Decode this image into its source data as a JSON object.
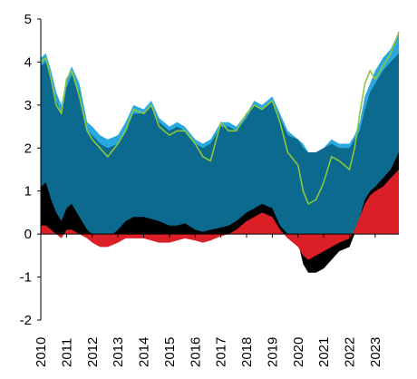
{
  "chart_data": {
    "type": "area",
    "title": "",
    "xlabel": "",
    "ylabel": "",
    "xlim": [
      2010.0,
      2023.92
    ],
    "ylim": [
      -2,
      5
    ],
    "grid": false,
    "legend": "none",
    "y_ticks": [
      "5",
      "4",
      "3",
      "2",
      "1",
      "0",
      "-1",
      "-2"
    ],
    "x_ticks": [
      "2010",
      "2011",
      "2012",
      "2013",
      "2014",
      "2015",
      "2016",
      "2017",
      "2018",
      "2019",
      "2020",
      "2021",
      "2022",
      "2023"
    ],
    "colors": {
      "total_area": "#29A9DF",
      "main_area": "#0B6A8E",
      "black_component": "#000000",
      "red_component": "#DA1F26",
      "line": "#8CC63F"
    },
    "series": [
      {
        "role": "total_area",
        "x": [
          2010.0,
          2010.2,
          2010.4,
          2010.6,
          2010.8,
          2011.0,
          2011.2,
          2011.5,
          2011.8,
          2012.0,
          2012.3,
          2012.6,
          2013.0,
          2013.3,
          2013.6,
          2014.0,
          2014.3,
          2014.6,
          2015.0,
          2015.3,
          2015.6,
          2016.0,
          2016.3,
          2016.6,
          2017.0,
          2017.3,
          2017.6,
          2018.0,
          2018.3,
          2018.6,
          2019.0,
          2019.3,
          2019.6,
          2020.0,
          2020.2,
          2020.4,
          2020.7,
          2021.0,
          2021.3,
          2021.6,
          2022.0,
          2022.2,
          2022.4,
          2022.6,
          2022.8,
          2023.0,
          2023.3,
          2023.6,
          2023.92
        ],
        "values": [
          4.1,
          4.2,
          3.8,
          3.3,
          3.0,
          3.6,
          3.9,
          3.5,
          2.6,
          2.5,
          2.3,
          2.2,
          2.3,
          2.6,
          3.0,
          2.9,
          3.1,
          2.7,
          2.5,
          2.6,
          2.5,
          2.2,
          2.1,
          2.2,
          2.6,
          2.6,
          2.5,
          2.8,
          3.1,
          3.0,
          3.2,
          2.8,
          2.4,
          2.2,
          2.1,
          1.9,
          1.9,
          2.0,
          2.2,
          2.1,
          2.1,
          2.3,
          2.6,
          3.2,
          3.5,
          3.8,
          4.1,
          4.3,
          4.7
        ]
      },
      {
        "role": "main_area",
        "x": [
          2010.0,
          2010.2,
          2010.4,
          2010.6,
          2010.8,
          2011.0,
          2011.2,
          2011.5,
          2011.8,
          2012.0,
          2012.3,
          2012.6,
          2013.0,
          2013.3,
          2013.6,
          2014.0,
          2014.3,
          2014.6,
          2015.0,
          2015.3,
          2015.6,
          2016.0,
          2016.3,
          2016.6,
          2017.0,
          2017.3,
          2017.6,
          2018.0,
          2018.3,
          2018.6,
          2019.0,
          2019.3,
          2019.6,
          2020.0,
          2020.2,
          2020.4,
          2020.7,
          2021.0,
          2021.3,
          2021.6,
          2022.0,
          2022.2,
          2022.4,
          2022.6,
          2022.8,
          2023.0,
          2023.3,
          2023.6,
          2023.92
        ],
        "values": [
          3.9,
          4.0,
          3.6,
          3.1,
          2.8,
          3.4,
          3.7,
          3.3,
          2.4,
          2.3,
          2.1,
          2.0,
          2.1,
          2.4,
          2.8,
          2.8,
          3.0,
          2.6,
          2.4,
          2.5,
          2.4,
          2.1,
          2.0,
          2.1,
          2.5,
          2.5,
          2.4,
          2.7,
          3.0,
          2.9,
          3.1,
          2.7,
          2.3,
          2.2,
          2.0,
          1.9,
          1.9,
          2.0,
          2.1,
          2.0,
          2.0,
          2.2,
          2.4,
          2.9,
          3.3,
          3.5,
          3.8,
          4.0,
          4.2
        ]
      },
      {
        "role": "black_component",
        "x": [
          2010.0,
          2010.2,
          2010.4,
          2010.6,
          2010.8,
          2011.0,
          2011.2,
          2011.5,
          2011.8,
          2012.0,
          2012.3,
          2012.6,
          2013.0,
          2013.3,
          2013.6,
          2014.0,
          2014.3,
          2014.6,
          2015.0,
          2015.3,
          2015.6,
          2016.0,
          2016.3,
          2016.6,
          2017.0,
          2017.3,
          2017.6,
          2018.0,
          2018.3,
          2018.6,
          2019.0,
          2019.3,
          2019.6,
          2020.0,
          2020.2,
          2020.4,
          2020.7,
          2021.0,
          2021.3,
          2021.6,
          2022.0,
          2022.2,
          2022.4,
          2022.6,
          2022.8,
          2023.0,
          2023.3,
          2023.6,
          2023.92
        ],
        "values": [
          1.1,
          1.2,
          0.8,
          0.5,
          0.3,
          0.6,
          0.7,
          0.4,
          0.1,
          0.0,
          -0.2,
          -0.1,
          0.1,
          0.3,
          0.4,
          0.4,
          0.35,
          0.3,
          0.2,
          0.2,
          0.25,
          0.1,
          0.05,
          0.1,
          0.15,
          0.2,
          0.3,
          0.5,
          0.6,
          0.7,
          0.6,
          0.2,
          0.0,
          -0.2,
          -0.7,
          -0.9,
          -0.9,
          -0.8,
          -0.6,
          -0.4,
          -0.3,
          0.0,
          0.4,
          0.8,
          1.0,
          1.1,
          1.3,
          1.5,
          1.9
        ]
      },
      {
        "role": "red_component",
        "x": [
          2010.0,
          2010.2,
          2010.4,
          2010.6,
          2010.8,
          2011.0,
          2011.2,
          2011.5,
          2011.8,
          2012.0,
          2012.3,
          2012.6,
          2013.0,
          2013.3,
          2013.6,
          2014.0,
          2014.3,
          2014.6,
          2015.0,
          2015.3,
          2015.6,
          2016.0,
          2016.3,
          2016.6,
          2017.0,
          2017.3,
          2017.6,
          2018.0,
          2018.3,
          2018.6,
          2019.0,
          2019.3,
          2019.6,
          2020.0,
          2020.2,
          2020.4,
          2020.7,
          2021.0,
          2021.3,
          2021.6,
          2022.0,
          2022.2,
          2022.4,
          2022.6,
          2022.8,
          2023.0,
          2023.3,
          2023.6,
          2023.92
        ],
        "values": [
          0.2,
          0.2,
          0.1,
          0.0,
          -0.1,
          0.1,
          0.1,
          0.0,
          -0.1,
          -0.2,
          -0.3,
          -0.3,
          -0.2,
          -0.1,
          -0.1,
          -0.1,
          -0.15,
          -0.2,
          -0.2,
          -0.15,
          -0.1,
          -0.15,
          -0.2,
          -0.15,
          -0.05,
          0.0,
          0.1,
          0.3,
          0.4,
          0.5,
          0.4,
          0.1,
          -0.1,
          -0.3,
          -0.5,
          -0.6,
          -0.5,
          -0.4,
          -0.3,
          -0.2,
          -0.1,
          0.1,
          0.4,
          0.7,
          0.9,
          1.0,
          1.1,
          1.3,
          1.5
        ]
      },
      {
        "role": "line",
        "x": [
          2010.0,
          2010.2,
          2010.4,
          2010.6,
          2010.8,
          2011.0,
          2011.2,
          2011.5,
          2011.8,
          2012.0,
          2012.3,
          2012.6,
          2013.0,
          2013.3,
          2013.6,
          2014.0,
          2014.3,
          2014.6,
          2015.0,
          2015.3,
          2015.6,
          2016.0,
          2016.3,
          2016.6,
          2017.0,
          2017.3,
          2017.6,
          2018.0,
          2018.3,
          2018.6,
          2019.0,
          2019.3,
          2019.6,
          2020.0,
          2020.2,
          2020.4,
          2020.7,
          2021.0,
          2021.3,
          2021.6,
          2022.0,
          2022.2,
          2022.4,
          2022.6,
          2022.8,
          2023.0,
          2023.3,
          2023.6,
          2023.92
        ],
        "values": [
          4.0,
          4.1,
          3.6,
          3.0,
          2.8,
          3.6,
          3.8,
          3.2,
          2.4,
          2.2,
          2.0,
          1.8,
          2.1,
          2.4,
          2.9,
          2.8,
          3.0,
          2.5,
          2.3,
          2.4,
          2.4,
          2.1,
          1.8,
          1.7,
          2.6,
          2.4,
          2.4,
          2.8,
          3.0,
          2.9,
          3.1,
          2.6,
          1.9,
          1.6,
          1.0,
          0.7,
          0.8,
          1.2,
          1.8,
          1.7,
          1.5,
          2.0,
          2.8,
          3.5,
          3.8,
          3.6,
          3.9,
          4.2,
          4.7
        ]
      }
    ]
  }
}
